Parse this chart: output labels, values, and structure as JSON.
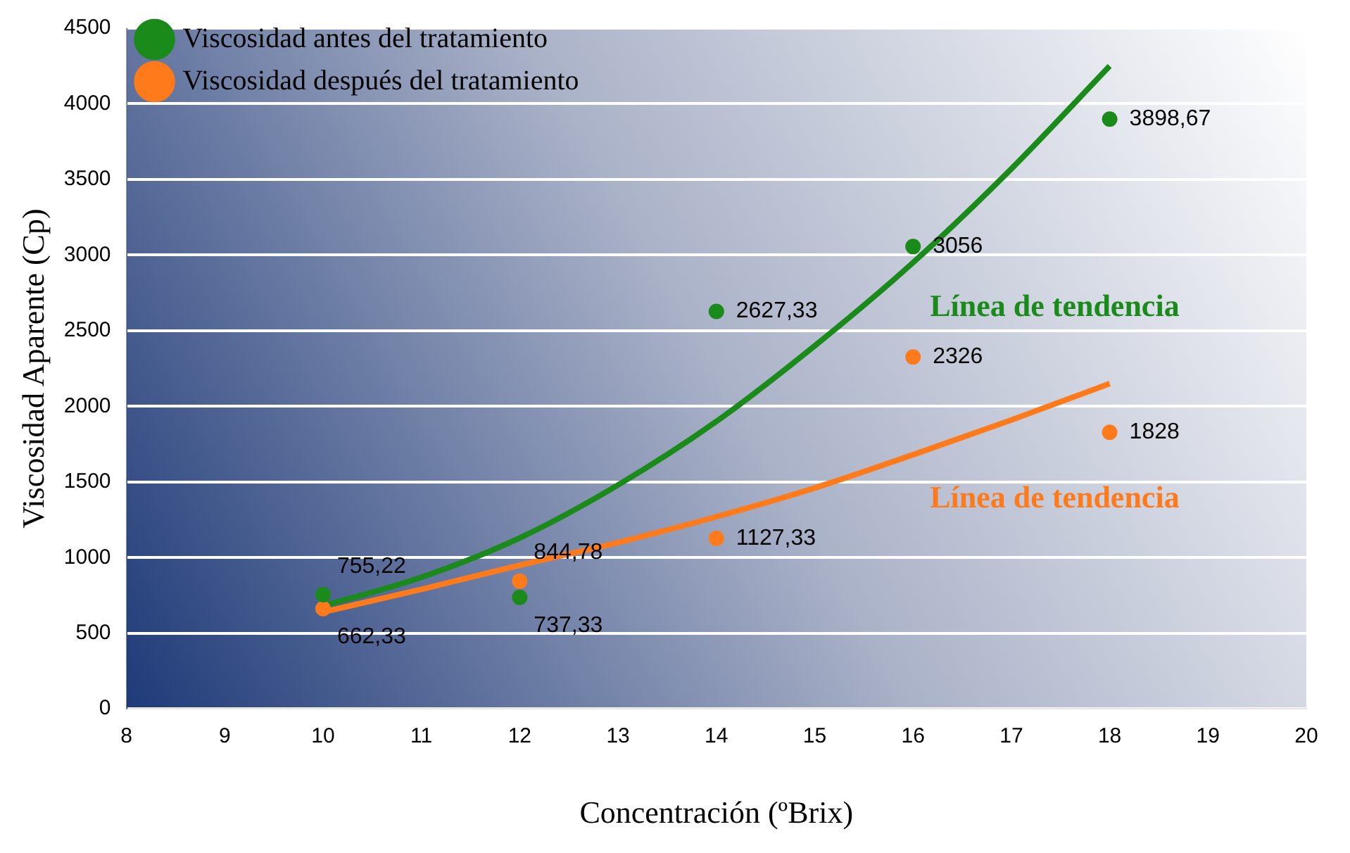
{
  "chart_data": {
    "type": "scatter",
    "xlabel": "Concentración (ºBrix)",
    "ylabel": "Viscosidad Aparente (Cp)",
    "xlim": [
      8,
      20
    ],
    "xticks": [
      8,
      9,
      10,
      11,
      12,
      13,
      14,
      15,
      16,
      17,
      18,
      19,
      20
    ],
    "ylim": [
      0,
      4500
    ],
    "yticks": [
      0,
      500,
      1000,
      1500,
      2000,
      2500,
      3000,
      3500,
      4000,
      4500
    ],
    "grid": "y",
    "legend": "top left",
    "marker": "circle",
    "series": [
      {
        "name": "Viscosidad antes del tratamiento",
        "color": "#1a8a1a",
        "x": [
          10,
          12,
          14,
          16,
          18
        ],
        "values": [
          755.22,
          737.33,
          2627.33,
          3056,
          3898.67
        ],
        "value_labels": [
          "755,22",
          "737,33",
          "2627,33",
          "3056",
          "3898,67"
        ]
      },
      {
        "name": "Viscosidad después del tratamiento",
        "color": "#ff7a1a",
        "x": [
          10,
          12,
          14,
          16,
          18
        ],
        "values": [
          662.33,
          844.78,
          1127.33,
          2326,
          1828
        ],
        "value_labels": [
          "662,33",
          "844,78",
          "1127,33",
          "2326",
          "1828"
        ]
      },
      {
        "name": "Línea de tendencia",
        "type": "line",
        "color": "#1a8a1a",
        "marker": "none",
        "x": [
          10,
          11,
          12,
          13,
          14,
          15,
          16,
          17,
          18
        ],
        "values": [
          680,
          870,
          1130,
          1480,
          1900,
          2400,
          2950,
          3570,
          4250
        ]
      },
      {
        "name": "Línea de tendencia",
        "type": "line",
        "color": "#ff7a1a",
        "marker": "none",
        "x": [
          10,
          11,
          12,
          13,
          14,
          15,
          16,
          17,
          18
        ],
        "values": [
          640,
          790,
          950,
          1100,
          1270,
          1460,
          1680,
          1910,
          2150
        ]
      }
    ]
  }
}
